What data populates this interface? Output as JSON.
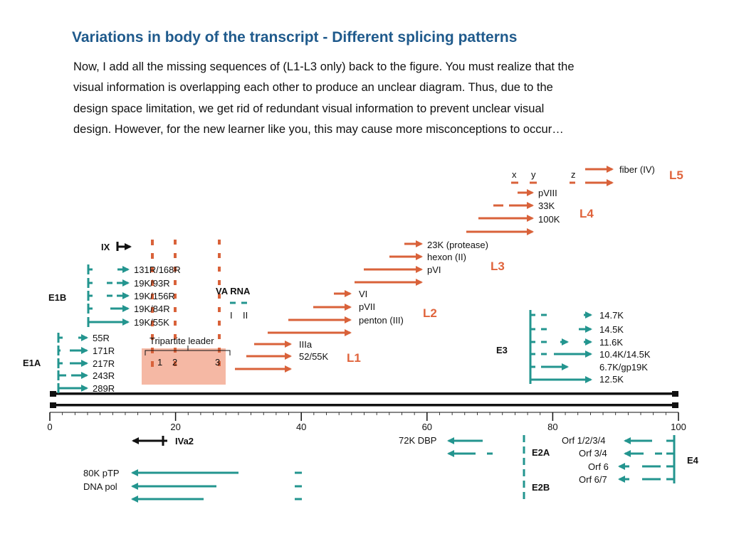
{
  "slide": {
    "title": "Variations in body of the transcript - Different splicing patterns",
    "body_lines": [
      "Now, I add all the missing sequences of (L1-L3 only) back to the figure. You must realize that the",
      "visual information is overlapping each other to produce an unclear diagram. Thus, due to the",
      "design space limitation, we get rid of redundant visual information to prevent unclear visual",
      "design. However, for the new learner like you, this may cause more misconceptions to occur…"
    ]
  },
  "colors": {
    "title": "#1f5a8c",
    "late": "#d9623a",
    "early": "#23958f",
    "highlight": "#f3ab94",
    "genome": "#111111"
  },
  "diagram": {
    "axis_ticks": [
      "0",
      "20",
      "40",
      "60",
      "80",
      "100"
    ],
    "regions": {
      "e1a": "E1A",
      "e1b": "E1B",
      "e2a": "E2A",
      "e2b": "E2B",
      "e3": "E3",
      "e4": "E4",
      "l1": "L1",
      "l2": "L2",
      "l3": "L3",
      "l4": "L4",
      "l5": "L5",
      "ix": "IX",
      "iva2": "IVa2",
      "va_rna": "VA RNA",
      "va_i": "I",
      "va_ii": "II",
      "tripartite_leader": "Tripartite leader",
      "leader_1": "1",
      "leader_2": "2",
      "leader_3": "3",
      "x": "x",
      "y": "y",
      "z": "z"
    },
    "e1a_products": [
      "55R",
      "171R",
      "217R",
      "243R",
      "289R"
    ],
    "e1b_products": [
      "131R/168R",
      "19K/93R",
      "19K/156R",
      "19K/84R",
      "19K/55K"
    ],
    "l1_products": [
      "IIIa",
      "52/55K"
    ],
    "l2_products": [
      "VI",
      "pVII",
      "penton (III)"
    ],
    "l3_products": [
      "23K (protease)",
      "hexon (II)",
      "pVI"
    ],
    "l4_products": [
      "pVIII",
      "33K",
      "100K"
    ],
    "l5_products": [
      "fiber (IV)"
    ],
    "e3_products": [
      "14.7K",
      "14.5K",
      "11.6K",
      "10.4K/14.5K",
      "6.7K/gp19K",
      "12.5K"
    ],
    "e2a_products": [
      "72K DBP"
    ],
    "e2b_products": [
      "80K pTP",
      "DNA pol"
    ],
    "e4_products": [
      "Orf 1/2/3/4",
      "Orf 3/4",
      "Orf 6",
      "Orf 6/7"
    ]
  }
}
